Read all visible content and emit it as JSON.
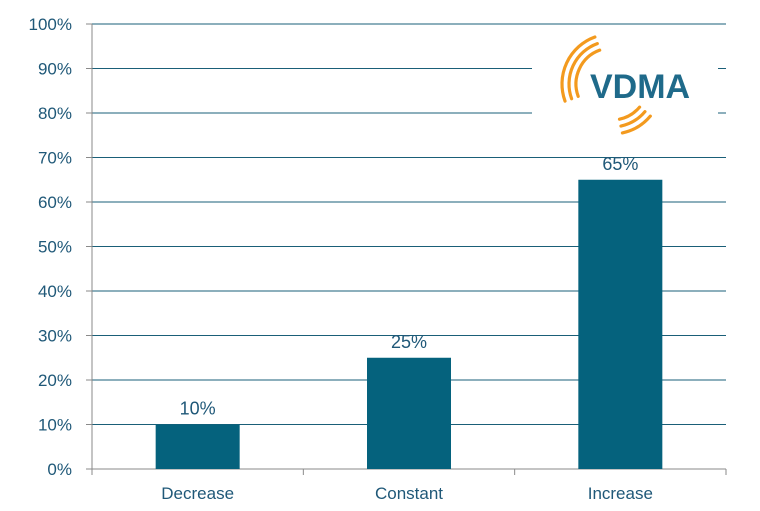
{
  "chart_data": {
    "type": "bar",
    "categories": [
      "Decrease",
      "Constant",
      "Increase"
    ],
    "values": [
      10,
      25,
      65
    ],
    "data_labels": [
      "10%",
      "25%",
      "65%"
    ],
    "title": "",
    "xlabel": "",
    "ylabel": "",
    "ylim": [
      0,
      100
    ],
    "y_ticks": [
      0,
      10,
      20,
      30,
      40,
      50,
      60,
      70,
      80,
      90,
      100
    ],
    "y_tick_labels": [
      "0%",
      "10%",
      "20%",
      "30%",
      "40%",
      "50%",
      "60%",
      "70%",
      "80%",
      "90%",
      "100%"
    ],
    "grid": true,
    "legend": "none"
  },
  "logo": {
    "text": "VDMA",
    "text_color": "#1f6a8a",
    "arc_color": "#f39a1e"
  },
  "colors": {
    "bar": "#05627d",
    "axis_text": "#1f5878",
    "gridline": "#1a5f78",
    "axis_line": "#8a8a8a"
  }
}
